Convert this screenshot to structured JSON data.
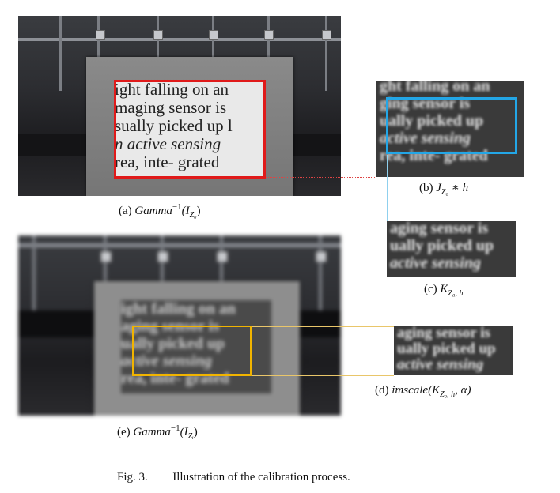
{
  "panel_a": {
    "text_lines": [
      "ight falling on an",
      "maging sensor is",
      "sually picked up l",
      "n active sensing",
      "rea, inte- grated"
    ],
    "caption": "(a) Gamma⁻¹(I₀)",
    "caption_prefix": "(a)",
    "caption_formula": "Gamma",
    "caption_sup": "−1",
    "caption_arg": "(I",
    "caption_sub": "Z₀",
    "caption_close": ")"
  },
  "panel_b": {
    "text_lines": [
      "ght falling on an",
      "ging sensor is",
      "ually picked up",
      "active sensing",
      "rea, inte- grated"
    ],
    "caption_prefix": "(b)",
    "caption_formula": "J",
    "caption_sub": "Z₀",
    "caption_rest": " ∗ h"
  },
  "panel_c": {
    "text_lines": [
      "aging sensor is",
      "ually picked up",
      "active sensing"
    ],
    "caption_prefix": "(c)",
    "caption_formula": "K",
    "caption_sub": "Z₀, h"
  },
  "panel_d": {
    "text_lines": [
      "aging sensor is",
      "ually picked up",
      "active sensing"
    ],
    "caption_prefix": "(d)",
    "caption_formula": "imscale(K",
    "caption_sub": "Z₀, h",
    "caption_rest": ", α)"
  },
  "panel_e": {
    "text_lines": [
      "ight falling on an",
      "aging sensor is",
      "ually picked up",
      "active sensing",
      "rea, inte- grated"
    ],
    "caption_prefix": "(e)",
    "caption_formula": "Gamma",
    "caption_sup": "−1",
    "caption_arg": "(I",
    "caption_sub": "Zᵢ",
    "caption_close": ")"
  },
  "figure_caption": {
    "label": "Fig. 3.",
    "text": "Illustration of the calibration process."
  },
  "colors": {
    "red_box": "#e01a1a",
    "blue_box": "#23a6e6",
    "yellow_box": "#f1b400"
  }
}
